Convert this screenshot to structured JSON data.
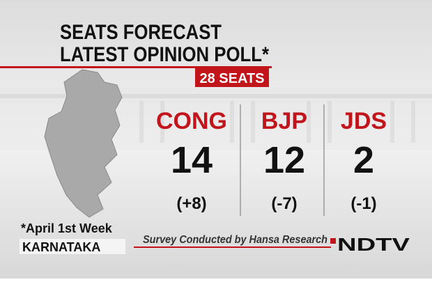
{
  "header": {
    "title_line1": "SEATS FORECAST",
    "title_line2": "LATEST OPINION POLL*",
    "seats_badge": "28 SEATS"
  },
  "parties": [
    {
      "name": "CONG",
      "seats": 14,
      "change": "(+8)"
    },
    {
      "name": "BJP",
      "seats": 12,
      "change": "(-7)"
    },
    {
      "name": "JDS",
      "seats": 2,
      "change": "(-1)"
    }
  ],
  "footer": {
    "note": "*April 1st Week",
    "state": "KARNATAKA",
    "source": "Survey Conducted by Hansa Research",
    "logo": "NDTV"
  }
}
